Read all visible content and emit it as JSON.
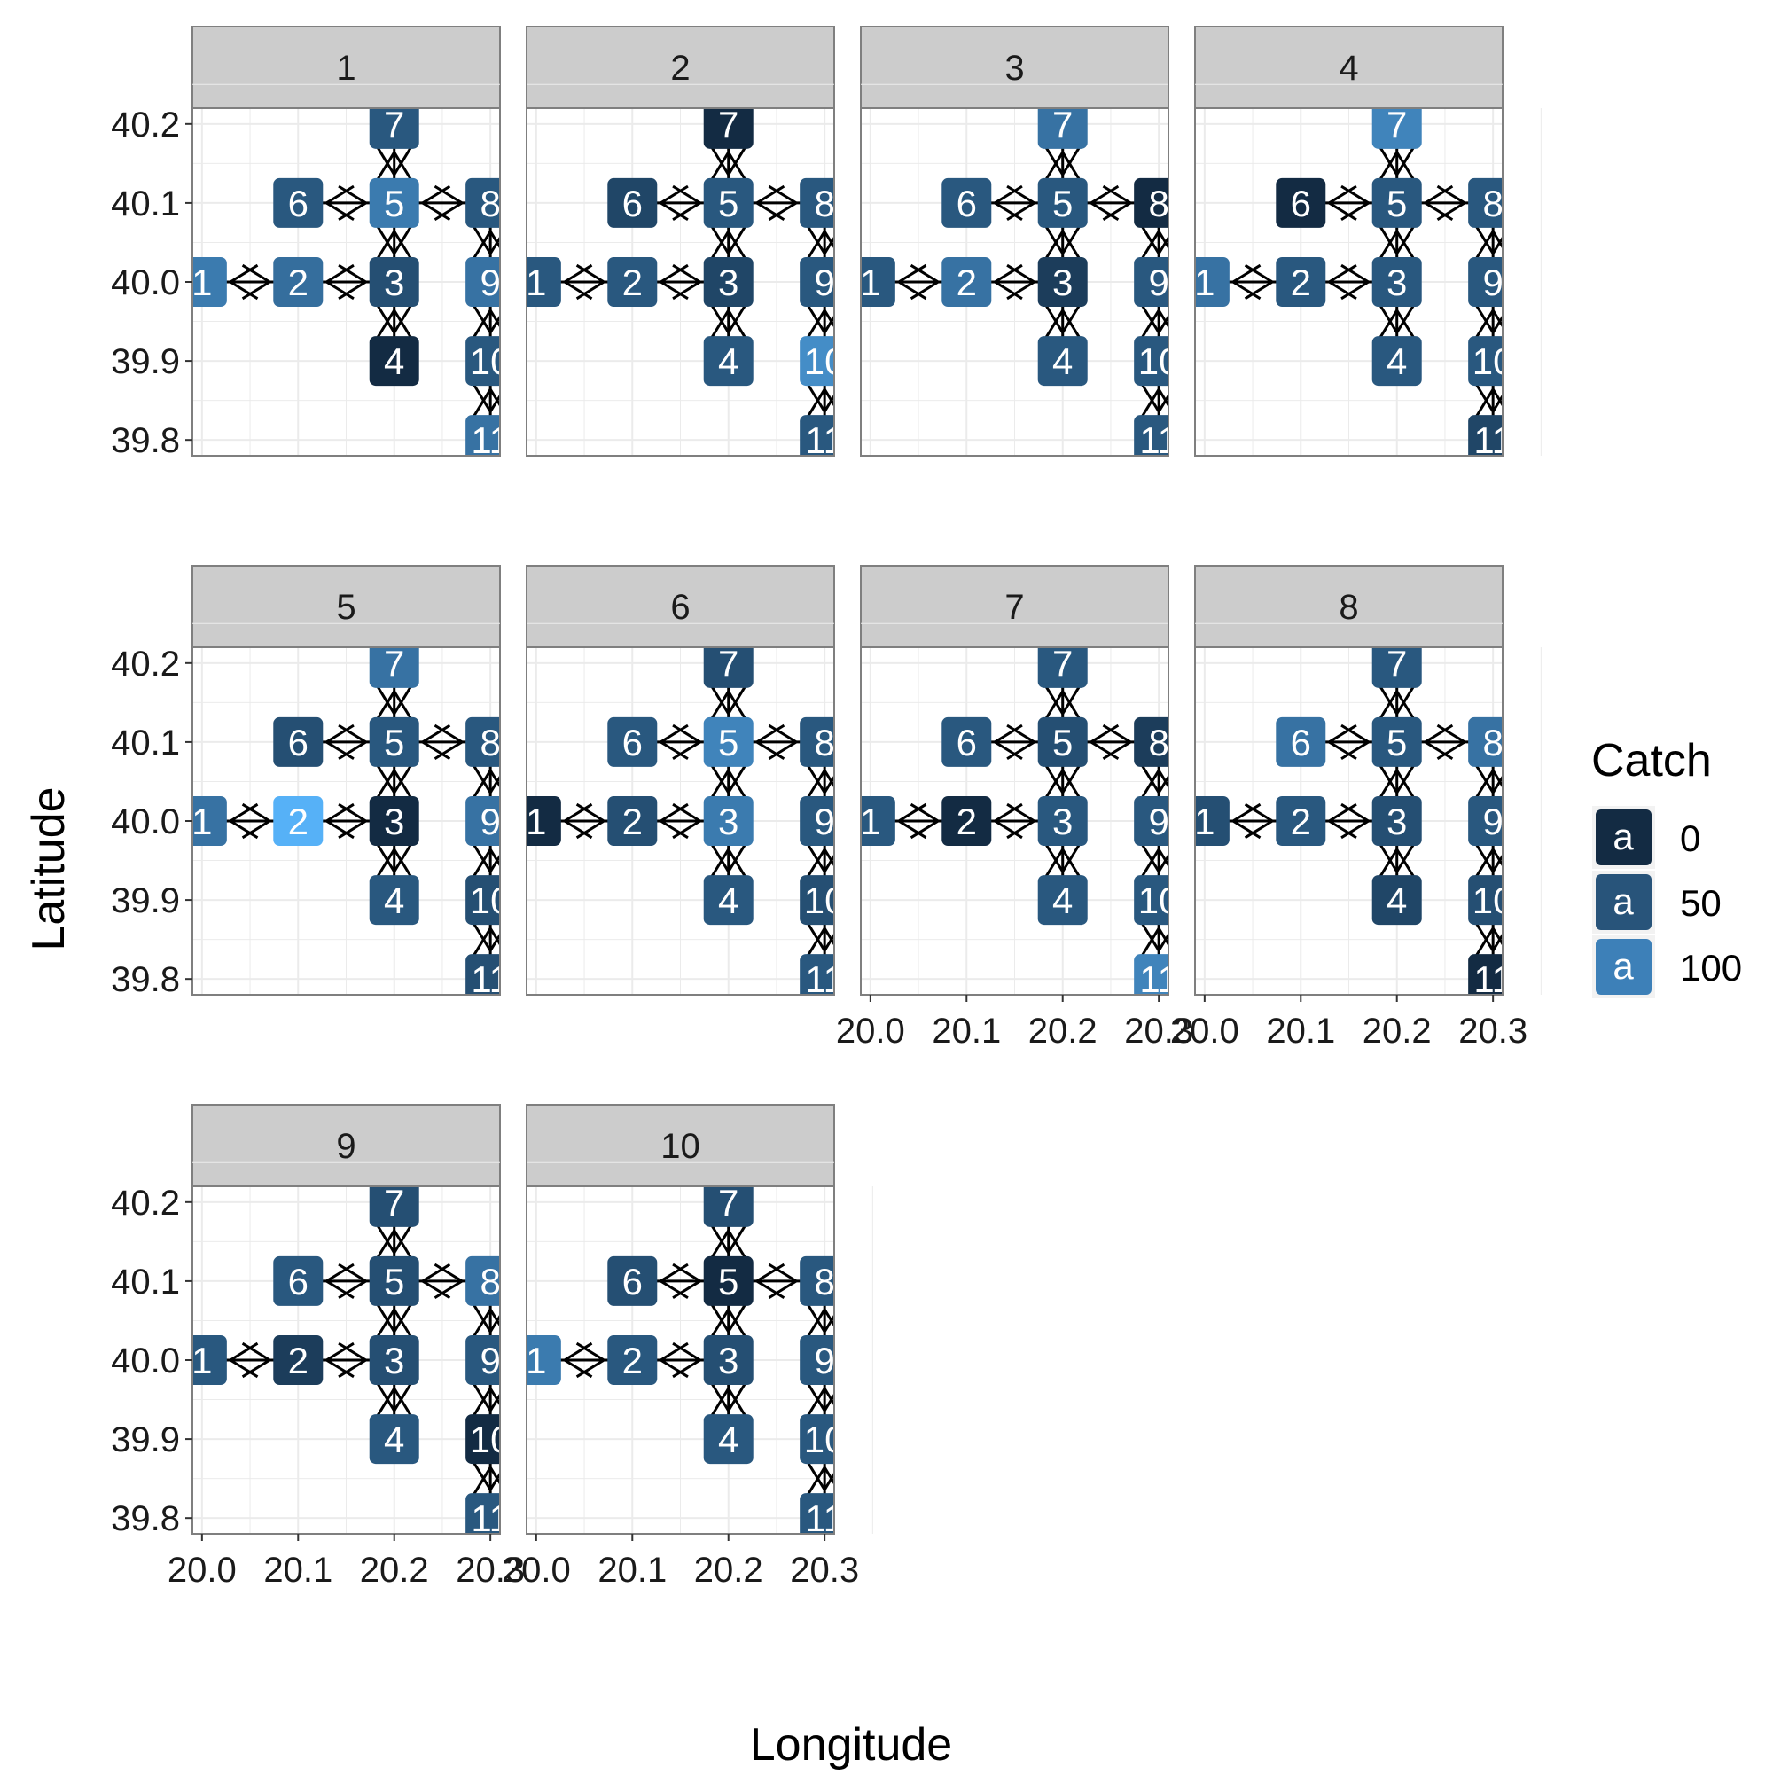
{
  "chart_data": {
    "type": "heatmap",
    "facet_variable": "panel",
    "xlabel": "Longitude",
    "ylabel": "Latitude",
    "xlim": [
      19.99,
      20.31
    ],
    "ylim": [
      39.78,
      40.22
    ],
    "x_ticks": [
      "20.0",
      "20.1",
      "20.2",
      "20.3"
    ],
    "y_ticks": [
      "39.8",
      "39.9",
      "40.0",
      "40.1",
      "40.2"
    ],
    "legend": {
      "title": "Catch",
      "position": "right",
      "key_glyph": "a",
      "levels": [
        {
          "label": "0",
          "color": "#132B43"
        },
        {
          "label": "50",
          "color": "#28547A"
        },
        {
          "label": "100",
          "color": "#3D80B8"
        }
      ]
    },
    "color_scale": {
      "low": "#132B43",
      "high": "#56B1F7",
      "limits": [
        0,
        150
      ]
    },
    "nodes": [
      {
        "id": "1",
        "lon": 20.0,
        "lat": 40.0
      },
      {
        "id": "2",
        "lon": 20.1,
        "lat": 40.0
      },
      {
        "id": "3",
        "lon": 20.2,
        "lat": 40.0
      },
      {
        "id": "4",
        "lon": 20.2,
        "lat": 39.9
      },
      {
        "id": "5",
        "lon": 20.2,
        "lat": 40.1
      },
      {
        "id": "6",
        "lon": 20.1,
        "lat": 40.1
      },
      {
        "id": "7",
        "lon": 20.2,
        "lat": 40.2
      },
      {
        "id": "8",
        "lon": 20.3,
        "lat": 40.1
      },
      {
        "id": "9",
        "lon": 20.3,
        "lat": 40.0
      },
      {
        "id": "10",
        "lon": 20.3,
        "lat": 39.9
      },
      {
        "id": "11",
        "lon": 20.3,
        "lat": 39.8
      }
    ],
    "edges": [
      [
        "1",
        "2"
      ],
      [
        "2",
        "3"
      ],
      [
        "3",
        "4"
      ],
      [
        "3",
        "5"
      ],
      [
        "5",
        "6"
      ],
      [
        "5",
        "7"
      ],
      [
        "5",
        "8"
      ],
      [
        "8",
        "9"
      ],
      [
        "9",
        "10"
      ],
      [
        "10",
        "11"
      ]
    ],
    "panels": [
      {
        "label": "1",
        "catch": [
          90,
          75,
          40,
          0,
          90,
          50,
          50,
          50,
          80,
          50,
          80
        ]
      },
      {
        "label": "2",
        "catch": [
          50,
          50,
          30,
          50,
          50,
          30,
          0,
          50,
          50,
          110,
          50
        ]
      },
      {
        "label": "3",
        "catch": [
          50,
          80,
          20,
          50,
          50,
          50,
          80,
          0,
          50,
          50,
          50
        ]
      },
      {
        "label": "4",
        "catch": [
          80,
          50,
          50,
          50,
          50,
          0,
          100,
          50,
          50,
          50,
          30
        ]
      },
      {
        "label": "5",
        "catch": [
          80,
          150,
          0,
          50,
          50,
          40,
          80,
          50,
          80,
          40,
          40
        ]
      },
      {
        "label": "6",
        "catch": [
          0,
          40,
          90,
          50,
          100,
          50,
          40,
          50,
          50,
          40,
          50
        ]
      },
      {
        "label": "7",
        "catch": [
          50,
          0,
          50,
          50,
          40,
          50,
          50,
          20,
          50,
          50,
          100
        ]
      },
      {
        "label": "8",
        "catch": [
          40,
          50,
          40,
          30,
          50,
          80,
          50,
          80,
          50,
          40,
          0
        ]
      },
      {
        "label": "9",
        "catch": [
          50,
          20,
          40,
          50,
          40,
          50,
          40,
          80,
          50,
          0,
          50
        ]
      },
      {
        "label": "10",
        "catch": [
          90,
          50,
          40,
          50,
          0,
          40,
          40,
          50,
          50,
          50,
          50
        ]
      }
    ]
  }
}
